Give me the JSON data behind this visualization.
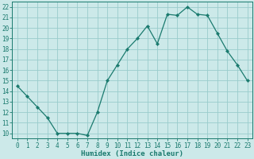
{
  "x": [
    0,
    1,
    2,
    3,
    4,
    5,
    6,
    7,
    8,
    9,
    10,
    11,
    12,
    13,
    14,
    15,
    16,
    17,
    18,
    19,
    20,
    21,
    22,
    23
  ],
  "y": [
    14.5,
    13.5,
    12.5,
    11.5,
    10.0,
    10.0,
    10.0,
    9.8,
    12.0,
    15.0,
    16.5,
    18.0,
    19.0,
    20.2,
    18.5,
    21.3,
    21.2,
    22.0,
    21.3,
    21.2,
    19.5,
    17.8,
    16.5,
    15.0
  ],
  "line_color": "#1a7a6e",
  "marker": "D",
  "marker_size": 2.2,
  "bg_color": "#cce9e9",
  "grid_color": "#99cccc",
  "xlabel": "Humidex (Indice chaleur)",
  "xlim": [
    -0.5,
    23.5
  ],
  "ylim": [
    9.5,
    22.5
  ],
  "yticks": [
    10,
    11,
    12,
    13,
    14,
    15,
    16,
    17,
    18,
    19,
    20,
    21,
    22
  ],
  "xticks": [
    0,
    1,
    2,
    3,
    4,
    5,
    6,
    7,
    8,
    9,
    10,
    11,
    12,
    13,
    14,
    15,
    16,
    17,
    18,
    19,
    20,
    21,
    22,
    23
  ],
  "axis_color": "#1a7a6e",
  "tick_color": "#1a7a6e",
  "label_color": "#1a7a6e",
  "tick_font_size": 5.5,
  "label_font_size": 6.5
}
